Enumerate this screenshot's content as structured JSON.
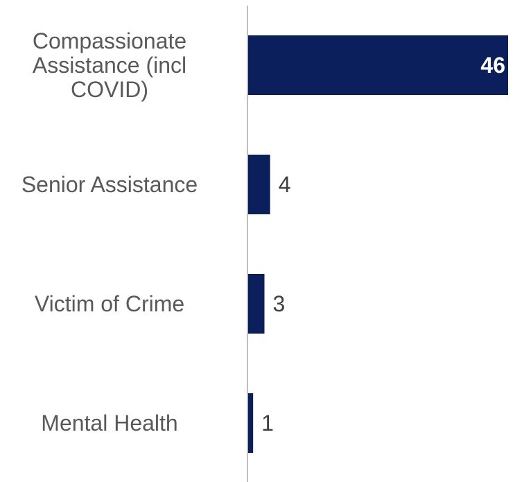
{
  "chart_data": {
    "type": "bar",
    "orientation": "horizontal",
    "categories": [
      [
        "Compassionate",
        "Assistance (incl",
        "COVID)"
      ],
      [
        "Senior Assistance"
      ],
      [
        "Victim of Crime"
      ],
      [
        "Mental Health"
      ]
    ],
    "values": [
      46,
      4,
      3,
      1
    ],
    "value_labels": [
      "46",
      "4",
      "3",
      "1"
    ],
    "title": "",
    "xlabel": "",
    "ylabel": "",
    "xlim": [
      0,
      46
    ],
    "grid": false,
    "legend": "none",
    "colors": {
      "bar": "#0b1f5c",
      "axis": "#bfbfbf",
      "category_text": "#595959",
      "value_text_outside": "#404040",
      "value_text_inside": "#ffffff"
    }
  }
}
